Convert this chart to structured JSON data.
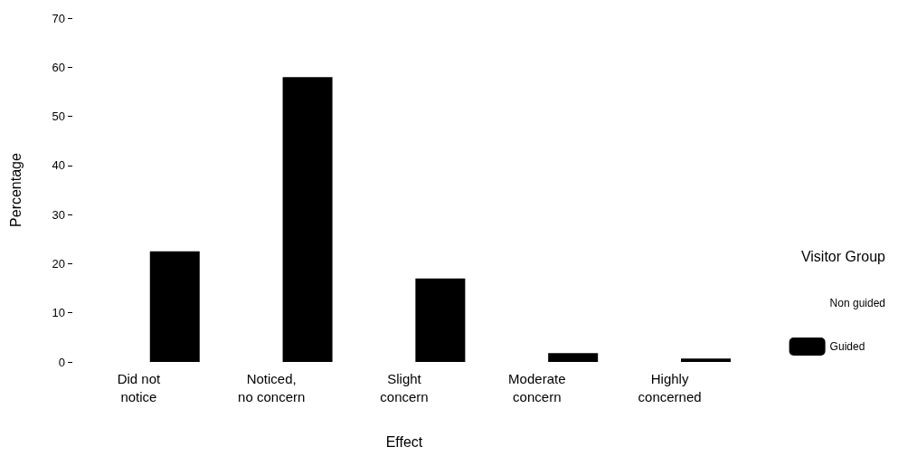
{
  "chart_data": {
    "type": "bar",
    "xlabel": "Effect",
    "ylabel": "Percentage",
    "legend_title": "Visitor Group",
    "categories": [
      "Did not\nnotice",
      "Noticed,\nno concern",
      "Slight\nconcern",
      "Moderate\nconcern",
      "Highly\nconcerned"
    ],
    "series": [
      {
        "name": "Non guided",
        "values": [
          null,
          null,
          null,
          null,
          null
        ]
      },
      {
        "name": "Guided",
        "color": "#000000",
        "values": [
          22.5,
          58,
          17,
          1.8,
          0.7
        ]
      }
    ],
    "ylim": [
      0,
      70
    ],
    "yticks": [
      0,
      10,
      20,
      30,
      40,
      50,
      60,
      70
    ],
    "grid": false,
    "legend": "right"
  }
}
